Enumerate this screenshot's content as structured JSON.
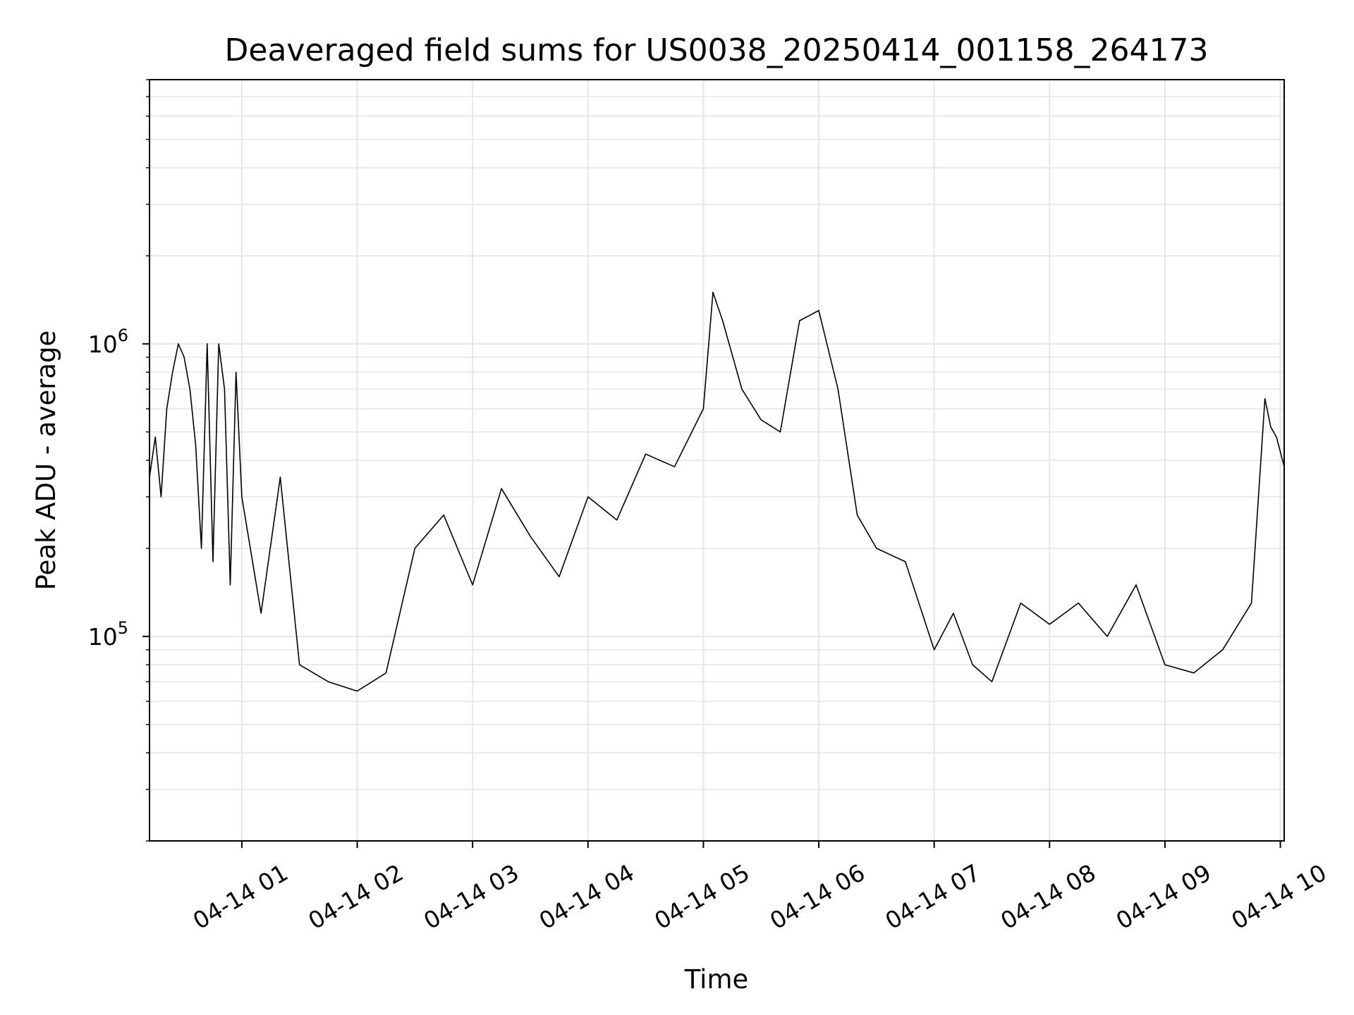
{
  "chart_data": {
    "type": "line",
    "title": "Deaveraged field sums for US0038_20250414_001158_264173",
    "xlabel": "Time",
    "ylabel": "Peak ADU - average",
    "x_range": [
      "2025-04-14 00:12",
      "2025-04-14 10:02"
    ],
    "yscale": "log",
    "ylim": [
      20000,
      8000000
    ],
    "grid": true,
    "line_color": "#000000",
    "x_ticks": [
      {
        "value": "2025-04-14 01:00",
        "label": "04-14 01"
      },
      {
        "value": "2025-04-14 02:00",
        "label": "04-14 02"
      },
      {
        "value": "2025-04-14 03:00",
        "label": "04-14 03"
      },
      {
        "value": "2025-04-14 04:00",
        "label": "04-14 04"
      },
      {
        "value": "2025-04-14 05:00",
        "label": "04-14 05"
      },
      {
        "value": "2025-04-14 06:00",
        "label": "04-14 06"
      },
      {
        "value": "2025-04-14 07:00",
        "label": "04-14 07"
      },
      {
        "value": "2025-04-14 08:00",
        "label": "04-14 08"
      },
      {
        "value": "2025-04-14 09:00",
        "label": "04-14 09"
      },
      {
        "value": "2025-04-14 10:00",
        "label": "04-14 10"
      }
    ],
    "y_ticks": [
      {
        "value": 100000,
        "base": "10",
        "exp": "5"
      },
      {
        "value": 1000000,
        "base": "10",
        "exp": "6"
      }
    ],
    "series": [
      {
        "x": [
          "2025-04-14 00:12",
          "2025-04-14 00:15",
          "2025-04-14 00:18",
          "2025-04-14 00:21",
          "2025-04-14 00:24",
          "2025-04-14 00:27",
          "2025-04-14 00:30",
          "2025-04-14 00:33",
          "2025-04-14 00:36",
          "2025-04-14 00:39",
          "2025-04-14 00:42",
          "2025-04-14 00:45",
          "2025-04-14 00:48",
          "2025-04-14 00:51",
          "2025-04-14 00:54",
          "2025-04-14 00:57",
          "2025-04-14 01:00",
          "2025-04-14 01:10",
          "2025-04-14 01:20",
          "2025-04-14 01:30",
          "2025-04-14 01:45",
          "2025-04-14 02:00",
          "2025-04-14 02:15",
          "2025-04-14 02:30",
          "2025-04-14 02:45",
          "2025-04-14 03:00",
          "2025-04-14 03:15",
          "2025-04-14 03:30",
          "2025-04-14 03:45",
          "2025-04-14 04:00",
          "2025-04-14 04:15",
          "2025-04-14 04:30",
          "2025-04-14 04:45",
          "2025-04-14 05:00",
          "2025-04-14 05:05",
          "2025-04-14 05:10",
          "2025-04-14 05:20",
          "2025-04-14 05:30",
          "2025-04-14 05:40",
          "2025-04-14 05:50",
          "2025-04-14 06:00",
          "2025-04-14 06:10",
          "2025-04-14 06:20",
          "2025-04-14 06:30",
          "2025-04-14 06:45",
          "2025-04-14 07:00",
          "2025-04-14 07:10",
          "2025-04-14 07:20",
          "2025-04-14 07:30",
          "2025-04-14 07:45",
          "2025-04-14 08:00",
          "2025-04-14 08:15",
          "2025-04-14 08:30",
          "2025-04-14 08:45",
          "2025-04-14 09:00",
          "2025-04-14 09:15",
          "2025-04-14 09:30",
          "2025-04-14 09:45",
          "2025-04-14 09:52",
          "2025-04-14 09:55",
          "2025-04-14 09:58",
          "2025-04-14 10:02"
        ],
        "y": [
          350000,
          480000,
          300000,
          600000,
          800000,
          1000000,
          900000,
          700000,
          450000,
          200000,
          1000000,
          180000,
          1000000,
          700000,
          150000,
          800000,
          300000,
          120000,
          350000,
          80000,
          70000,
          65000,
          75000,
          200000,
          260000,
          150000,
          320000,
          220000,
          160000,
          300000,
          250000,
          420000,
          380000,
          600000,
          1500000,
          1200000,
          700000,
          550000,
          500000,
          1200000,
          1300000,
          700000,
          260000,
          200000,
          180000,
          90000,
          120000,
          80000,
          70000,
          130000,
          110000,
          130000,
          100000,
          150000,
          80000,
          75000,
          90000,
          130000,
          650000,
          520000,
          480000,
          380000
        ]
      }
    ]
  }
}
